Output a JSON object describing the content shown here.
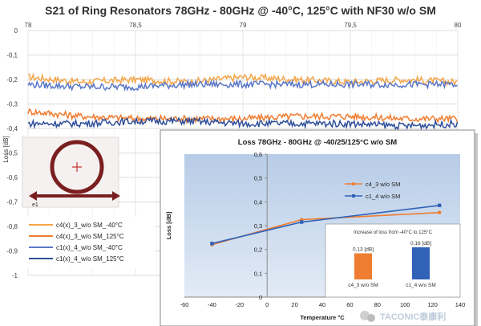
{
  "chart_data": [
    {
      "type": "line",
      "title": "S21 of Ring Resonators 78GHz - 80GHz @ -40°C, 125°C with NF30 w/o SM",
      "xlabel": "",
      "ylabel": "Loss [dB]",
      "xlim": [
        78,
        80
      ],
      "ylim": [
        -1,
        0
      ],
      "x_tick_labels": [
        "78",
        "78,5",
        "79",
        "79,5",
        "80"
      ],
      "y_tick_labels": [
        "0",
        "-0,1",
        "-0,2",
        "-0,3",
        "-0,4",
        "-0,5",
        "-0,6",
        "-0,7",
        "-0,8",
        "-0,9",
        "-1"
      ],
      "grid": true,
      "legend": "bottom-left",
      "series": [
        {
          "name": "c4(x)_3_w/o SM_-40°C",
          "color": "#f4a64a",
          "x": [
            78,
            78.25,
            78.5,
            78.75,
            79,
            79.25,
            79.5,
            79.75,
            80
          ],
          "values": [
            -0.19,
            -0.21,
            -0.2,
            -0.21,
            -0.19,
            -0.2,
            -0.21,
            -0.2,
            -0.21
          ]
        },
        {
          "name": "c4(x)_3_w/o SM_125°C",
          "color": "#ee7d31",
          "x": [
            78,
            78.25,
            78.5,
            78.75,
            79,
            79.25,
            79.5,
            79.75,
            80
          ],
          "values": [
            -0.33,
            -0.35,
            -0.36,
            -0.36,
            -0.36,
            -0.35,
            -0.35,
            -0.36,
            -0.36
          ]
        },
        {
          "name": "c1(x)_4_w/o SM_-40°C",
          "color": "#5b78c7",
          "x": [
            78,
            78.25,
            78.5,
            78.75,
            79,
            79.25,
            79.5,
            79.75,
            80
          ],
          "values": [
            -0.22,
            -0.23,
            -0.23,
            -0.22,
            -0.22,
            -0.22,
            -0.22,
            -0.22,
            -0.22
          ]
        },
        {
          "name": "c1(x)_4_w/o SM_125°C",
          "color": "#2f4f9a",
          "x": [
            78,
            78.25,
            78.5,
            78.75,
            79,
            79.25,
            79.5,
            79.75,
            80
          ],
          "values": [
            -0.38,
            -0.38,
            -0.37,
            -0.37,
            -0.38,
            -0.38,
            -0.38,
            -0.39,
            -0.38
          ]
        }
      ],
      "inset_label": "e1"
    },
    {
      "type": "line",
      "title": "Loss 78GHz - 80GHz @ -40/25/125°C  w/o SM",
      "xlabel": "Temperature °C",
      "ylabel": "Loss [dB]",
      "xlim": [
        -60,
        140
      ],
      "ylim": [
        0,
        0.6
      ],
      "x_tick_labels": [
        "-60",
        "-40",
        "-20",
        "0",
        "20",
        "40",
        "60",
        "80",
        "100",
        "120",
        "140"
      ],
      "y_tick_labels": [
        "0",
        "0,1",
        "0,2",
        "0,3",
        "0,4",
        "0,5",
        "0,6"
      ],
      "grid": false,
      "legend": "top-right",
      "series": [
        {
          "name": "c4_3 w/o SM",
          "color": "#ee7d31",
          "x": [
            -40,
            25,
            125
          ],
          "values": [
            0.22,
            0.325,
            0.355
          ]
        },
        {
          "name": "c1_4 w/o SM",
          "color": "#3063b8",
          "x": [
            -40,
            25,
            125
          ],
          "values": [
            0.225,
            0.315,
            0.385
          ]
        }
      ]
    },
    {
      "type": "bar",
      "title": "Increase of loss from -40°C to 125°C",
      "categories": [
        "c4_3 w/o SM",
        "c1_4 w/o SM"
      ],
      "values": [
        0.13,
        0.16
      ],
      "data_labels": [
        "0,13 [dB]",
        "0,16 [dB]"
      ],
      "colors": [
        "#ee7d31",
        "#3063b8"
      ],
      "ylim": [
        0,
        0.2
      ]
    }
  ],
  "watermark": "TACONIC泰康利"
}
